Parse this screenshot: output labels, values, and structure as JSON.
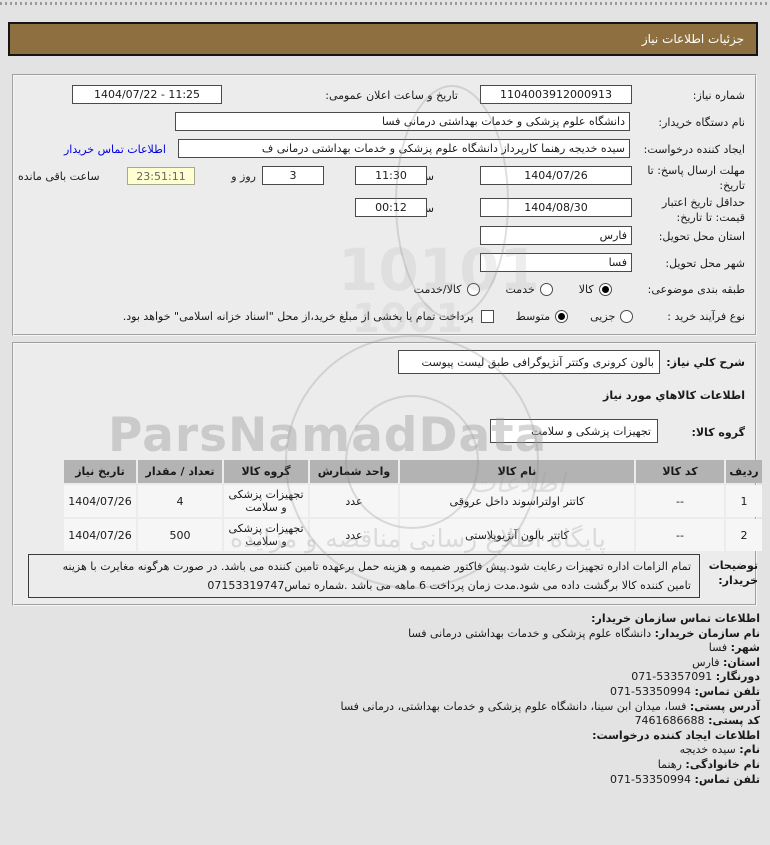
{
  "title_bar": {
    "text": "جزئیات اطلاعات نیاز"
  },
  "form": {
    "need_number": {
      "label": "شماره نیاز:",
      "value": "1104003912000913"
    },
    "announce": {
      "label": "تاریخ و ساعت اعلان عمومی:",
      "value": "1404/07/22 - 11:25"
    },
    "buyer_org": {
      "label": "نام دستگاه خریدار:",
      "value": "دانشگاه علوم پزشکی و خدمات بهداشتی درمانی فسا"
    },
    "request_creator": {
      "label": "ایجاد کننده درخواست:",
      "value": "سیده خدیجه رهنما کارپرداز دانشگاه علوم پزشکی و خدمات بهداشتی درمانی ف",
      "link": "اطلاعات تماس خریدار"
    },
    "reply_deadline": {
      "label": "مهلت ارسال پاسخ: تا تاریخ:",
      "date": "1404/07/26",
      "hour_label": "ساعت",
      "time": "11:30",
      "days": "3",
      "days_label": "روز و",
      "remaining": "23:51:11",
      "remaining_label": "ساعت باقی مانده"
    },
    "price_validity": {
      "label": "حداقل تاریخ اعتبار قیمت: تا تاریخ:",
      "date": "1404/08/30",
      "hour_label": "ساعت",
      "time": "00:12"
    },
    "province": {
      "label": "استان محل تحویل:",
      "value": "فارس"
    },
    "city": {
      "label": "شهر محل تحویل:",
      "value": "فسا"
    },
    "classification": {
      "label": "طبقه بندی موضوعی:",
      "options": [
        {
          "label": "کالا",
          "checked": true
        },
        {
          "label": "خدمت",
          "checked": false
        },
        {
          "label": "کالا/خدمت",
          "checked": false
        }
      ]
    },
    "purchase_type": {
      "label": "نوع فرآیند خرید :",
      "options": [
        {
          "label": "جزیی",
          "checked": false
        },
        {
          "label": "متوسط",
          "checked": true
        }
      ],
      "checkbox": {
        "label": "پرداخت تمام یا بخشی از مبلغ خرید،از محل \"اسناد خزانه اسلامی\" خواهد بود.",
        "checked": false
      }
    }
  },
  "need_section": {
    "desc_label": "شرح کلي نياز:",
    "desc_value": "بالون کرونری وکتتر آنژیوگرافی طبق لیست پیوست",
    "goods_info_title": "اطلاعات کالاهاي مورد نياز",
    "group_label": "گروه کالا:",
    "group_value": "تجهیزات پزشکی و سلامت"
  },
  "table": {
    "headers": [
      "ردیف",
      "کد کالا",
      "نام کالا",
      "واحد شمارش",
      "گروه کالا",
      "تعداد / مقدار",
      "تاریخ نیاز"
    ],
    "rows": [
      [
        "1",
        "--",
        "کاتتر اولتراسوند داخل عروقی",
        "عدد",
        "تجهیزات پزشکی و سلامت",
        "4",
        "1404/07/26"
      ],
      [
        "2",
        "--",
        "کاتتر بالون آنژیوپلاستی",
        "عدد",
        "تجهیزات پزشکی و سلامت",
        "500",
        "1404/07/26"
      ]
    ]
  },
  "notes": {
    "label_line1": "توضیحات",
    "label_line2": "خریدار:",
    "text": "تمام الزامات اداره تجهیزات رعایت شود.پیش فاکتور ضمیمه و هزینه حمل برعهده تامین کننده می باشد. در صورت هرگونه مغایرت با هزینه تامین کننده کالا برگشت داده می شود.مدت زمان پرداخت 6 ماهه می باشد .شماره تماس07153319747"
  },
  "contact": {
    "lines": [
      {
        "b": "اطلاعات تماس سازمان خریدار:",
        "t": ""
      },
      {
        "b": "نام سازمان خریدار:",
        "t": "دانشگاه علوم پزشکی و خدمات بهداشتی درمانی فسا"
      },
      {
        "b": "شهر:",
        "t": "فسا"
      },
      {
        "b": "استان:",
        "t": "فارس"
      },
      {
        "b": "دورنگار:",
        "t": "53357091-071"
      },
      {
        "b": "تلفن تماس:",
        "t": "53350994-071"
      },
      {
        "b": "آدرس پستی:",
        "t": "فسا، میدان ابن سینا، دانشگاه علوم پزشکی و خدمات بهداشتی، درمانی فسا"
      },
      {
        "b": "کد پستی:",
        "t": "7461686688"
      },
      {
        "b": "اطلاعات ایجاد کننده درخواست:",
        "t": ""
      },
      {
        "b": "نام:",
        "t": "سیده خدیجه"
      },
      {
        "b": "نام خانوادگی:",
        "t": "رهنما"
      },
      {
        "b": "تلفن تماس:",
        "t": "53350994-071"
      }
    ]
  },
  "watermark": {
    "main": "ParsNamadData",
    "digits1": "10101",
    "digits2": "1001",
    "fa1": "پایگاه اطلاع رسانی مناقصه و مزایده",
    "fa2": "اطلاعات"
  },
  "colors": {
    "header_brown": "#8e7040",
    "link_blue": "#0000e0",
    "remaining_bg": "#ffffd2"
  }
}
